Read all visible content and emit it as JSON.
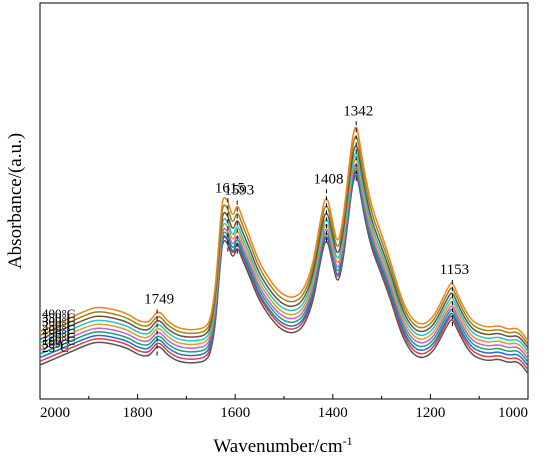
{
  "chart_data": {
    "type": "line",
    "xlabel": "Wavenumber/cm",
    "xlabel_sup": "-1",
    "ylabel": "Absorbance/(a.u.)",
    "xlim": [
      2000,
      1000
    ],
    "x_reversed": true,
    "x_ticks": [
      2000,
      1800,
      1600,
      1400,
      1200,
      1000
    ],
    "y_ticks_shown": false,
    "grid": false,
    "legend": "none",
    "peak_labels": [
      {
        "label": "1749",
        "x": 1760,
        "series": "400°C"
      },
      {
        "label": "1615",
        "x": 1615,
        "series": "400°C"
      },
      {
        "label": "1593",
        "x": 1596,
        "series": "400°C"
      },
      {
        "label": "1408",
        "x": 1413,
        "series": "400°C"
      },
      {
        "label": "1342",
        "x": 1352,
        "series": "400°C"
      },
      {
        "label": "1153",
        "x": 1155,
        "series": "400°C"
      }
    ],
    "base_profile": {
      "note_units": "relative absorbance",
      "x": [
        2000,
        1950,
        1900,
        1880,
        1850,
        1820,
        1800,
        1780,
        1770,
        1760,
        1750,
        1740,
        1720,
        1700,
        1680,
        1660,
        1650,
        1640,
        1630,
        1625,
        1615,
        1605,
        1596,
        1585,
        1570,
        1550,
        1520,
        1500,
        1480,
        1460,
        1440,
        1425,
        1413,
        1400,
        1390,
        1380,
        1370,
        1360,
        1352,
        1345,
        1335,
        1320,
        1300,
        1280,
        1260,
        1240,
        1220,
        1200,
        1185,
        1170,
        1160,
        1155,
        1145,
        1130,
        1115,
        1100,
        1080,
        1060,
        1040,
        1020,
        1000
      ],
      "y": [
        0.0,
        0.05,
        0.1,
        0.11,
        0.1,
        0.08,
        0.05,
        0.04,
        0.06,
        0.09,
        0.08,
        0.05,
        0.02,
        0.01,
        0.01,
        0.02,
        0.06,
        0.2,
        0.5,
        0.6,
        0.58,
        0.5,
        0.57,
        0.5,
        0.42,
        0.3,
        0.2,
        0.16,
        0.15,
        0.18,
        0.3,
        0.5,
        0.62,
        0.48,
        0.38,
        0.48,
        0.66,
        0.86,
        0.92,
        0.84,
        0.7,
        0.55,
        0.43,
        0.3,
        0.15,
        0.06,
        0.03,
        0.05,
        0.1,
        0.17,
        0.21,
        0.22,
        0.17,
        0.1,
        0.05,
        0.03,
        0.02,
        0.03,
        0.01,
        0.02,
        -0.04
      ]
    },
    "series": [
      {
        "name": "25°C",
        "color": "#555555",
        "offset": 0.0,
        "scale": 1.0
      },
      {
        "name": "50°C",
        "color": "#e8383b",
        "offset": 0.1,
        "scale": 1.0
      },
      {
        "name": "100°C",
        "color": "#1f6fd1",
        "offset": 0.2,
        "scale": 0.98
      },
      {
        "name": "120°C",
        "color": "#19a36a",
        "offset": 0.3,
        "scale": 0.98
      },
      {
        "name": "150°C",
        "color": "#c45be0",
        "offset": 0.4,
        "scale": 0.98
      },
      {
        "name": "200°C",
        "color": "#d9a21a",
        "offset": 0.5,
        "scale": 0.99
      },
      {
        "name": "250°C",
        "color": "#1cc7d1",
        "offset": 0.6,
        "scale": 1.0
      },
      {
        "name": "300°C",
        "color": "#7a4a3a",
        "offset": 0.7,
        "scale": 1.02
      },
      {
        "name": "350°C",
        "color": "#8c8c1a",
        "offset": 0.8,
        "scale": 1.05
      },
      {
        "name": "400°C",
        "color": "#f0821e",
        "offset": 0.9,
        "scale": 1.08
      }
    ]
  }
}
